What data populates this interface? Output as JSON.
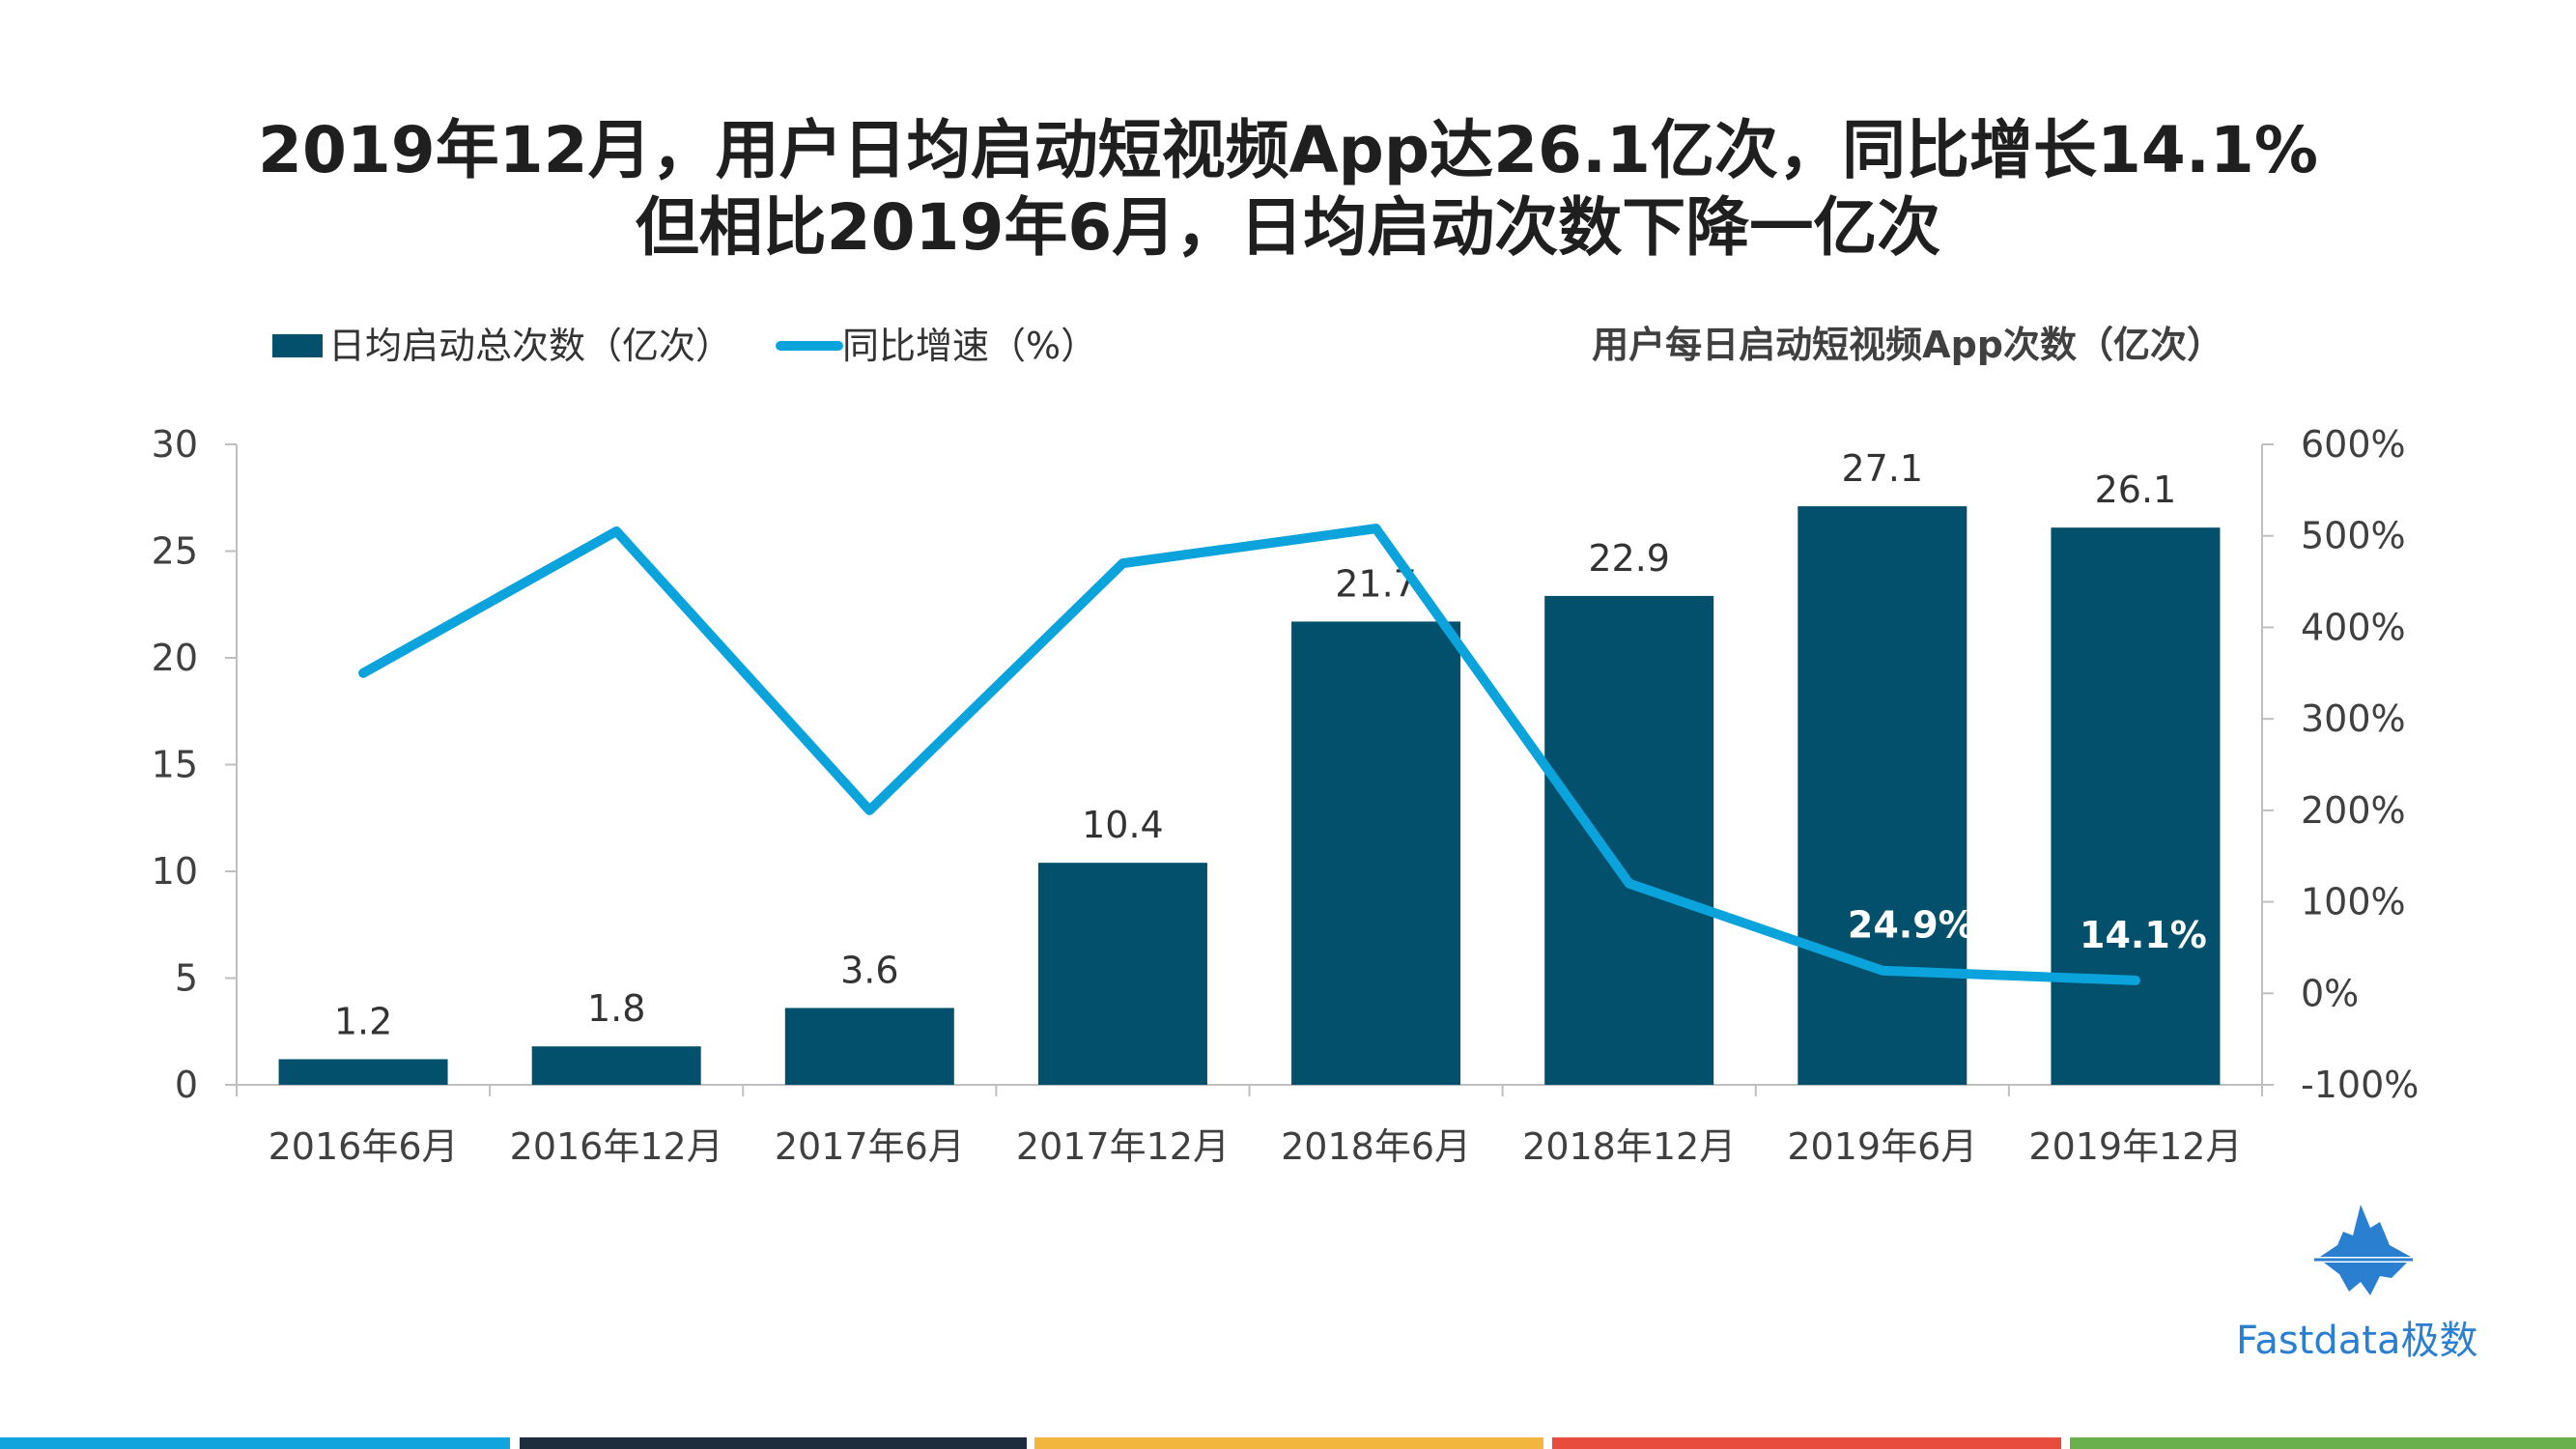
{
  "title": {
    "line1": "2019年12月，用户日均启动短视频App达26.1亿次，同比增长14.1%",
    "line2": "但相比2019年6月，日均启动次数下降一亿次"
  },
  "colors": {
    "bar": "#02506b",
    "line": "#0aa3dc",
    "text": "#333333",
    "axis": "#bfbfbf",
    "footer": [
      "#12a4dc",
      "#1e2d3d",
      "#f2b63e",
      "#e84c3d",
      "#6ab04c"
    ]
  },
  "brand": {
    "name": "Fastdata极数",
    "logo_icon": "iceberg-logo-icon"
  },
  "chart_data": {
    "type": "bar+line",
    "subtitle": "用户每日启动短视频App次数（亿次）",
    "categories": [
      "2016年6月",
      "2016年12月",
      "2017年6月",
      "2017年12月",
      "2018年6月",
      "2018年12月",
      "2019年6月",
      "2019年12月"
    ],
    "series": [
      {
        "name": "日均启动总次数（亿次）",
        "type": "bar",
        "axis": "left",
        "values": [
          1.2,
          1.8,
          3.6,
          10.4,
          21.7,
          22.9,
          27.1,
          26.1
        ],
        "labels": [
          "1.2",
          "1.8",
          "3.6",
          "10.4",
          "21.7",
          "22.9",
          "27.1",
          "26.1"
        ]
      },
      {
        "name": "同比增速（%）",
        "type": "line",
        "axis": "right",
        "values": [
          350,
          505,
          200,
          470,
          508,
          120,
          24.9,
          14.1
        ],
        "labels": [
          "",
          "",
          "",
          "",
          "",
          "",
          "24.9%",
          "14.1%"
        ]
      }
    ],
    "y_left": {
      "min": 0,
      "max": 30,
      "ticks": [
        "0",
        "5",
        "10",
        "15",
        "20",
        "25",
        "30"
      ]
    },
    "y_right": {
      "min": -100,
      "max": 600,
      "ticks": [
        "-100%",
        "0%",
        "100%",
        "200%",
        "300%",
        "400%",
        "500%",
        "600%"
      ]
    },
    "legend_position": "top-left"
  }
}
